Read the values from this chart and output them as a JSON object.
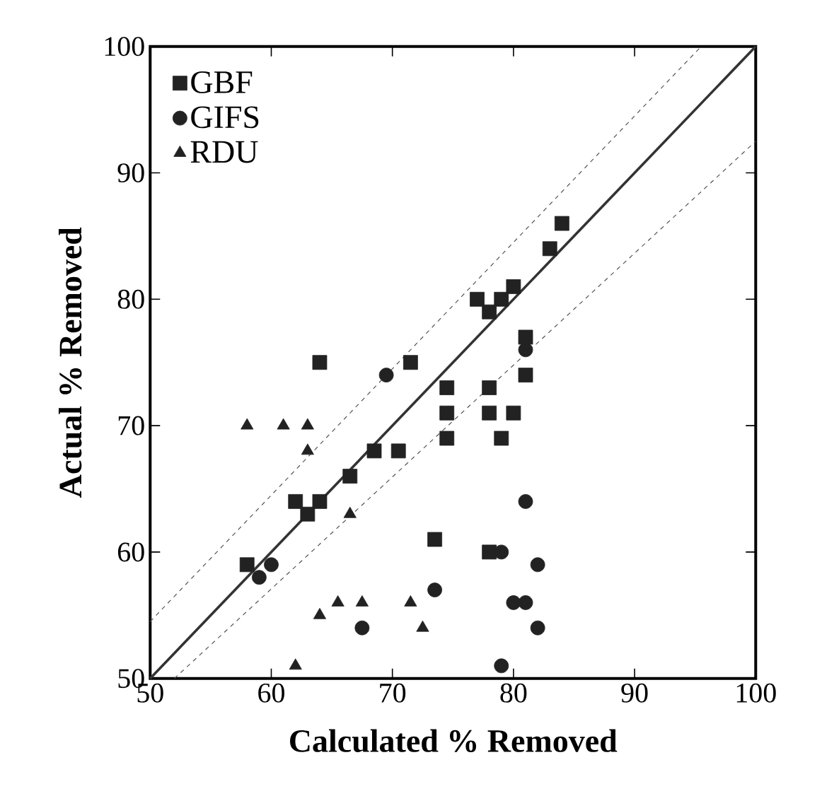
{
  "chart_data": {
    "type": "scatter",
    "xlabel": "Calculated % Removed",
    "ylabel": "Actual % Removed",
    "xlim": [
      50,
      100
    ],
    "ylim": [
      50,
      100
    ],
    "xticks": [
      50,
      60,
      70,
      80,
      90,
      100
    ],
    "yticks": [
      50,
      60,
      70,
      80,
      90,
      100
    ],
    "grid": false,
    "legend": "top left",
    "series": [
      {
        "name": "GBF",
        "color": "#222222",
        "marker": "square",
        "x": [
          84,
          83,
          80,
          79,
          77,
          78,
          81,
          81,
          71.5,
          74.5,
          78,
          74.5,
          78,
          80,
          74.5,
          79,
          70.5,
          64,
          68.5,
          66.5,
          62,
          64,
          63,
          58,
          73.5,
          78
        ],
        "values": [
          86,
          84,
          81,
          80,
          80,
          79,
          77,
          74,
          75,
          73,
          73,
          71,
          71,
          71,
          69,
          69,
          68,
          75,
          68,
          66,
          64,
          64,
          63,
          59,
          61,
          60
        ]
      },
      {
        "name": "GIFS",
        "color": "#222222",
        "marker": "circle",
        "x": [
          81,
          69.5,
          81,
          79,
          82,
          73.5,
          80,
          81,
          82,
          79,
          59,
          60,
          67.5
        ],
        "values": [
          76,
          74,
          64,
          60,
          59,
          57,
          56,
          56,
          54,
          51,
          58,
          59,
          54
        ]
      },
      {
        "name": "RDU",
        "color": "#222222",
        "marker": "triangle",
        "x": [
          58,
          61,
          63,
          63,
          66.5,
          71.5,
          72.5,
          65.5,
          67.5,
          64,
          62
        ],
        "values": [
          70,
          70,
          70,
          68,
          63,
          56,
          54,
          56,
          56,
          55,
          51
        ]
      },
      {
        "type": "line",
        "color": "#333333",
        "line_style": "solid",
        "x": [
          50,
          100
        ],
        "values": [
          50,
          100
        ]
      },
      {
        "type": "line",
        "color": "#555555",
        "line_style": "dashed",
        "x": [
          50,
          95.5
        ],
        "values": [
          54.5,
          100
        ]
      },
      {
        "type": "line",
        "color": "#555555",
        "line_style": "dashed",
        "x": [
          52,
          100
        ],
        "values": [
          50,
          92.5
        ]
      }
    ]
  }
}
